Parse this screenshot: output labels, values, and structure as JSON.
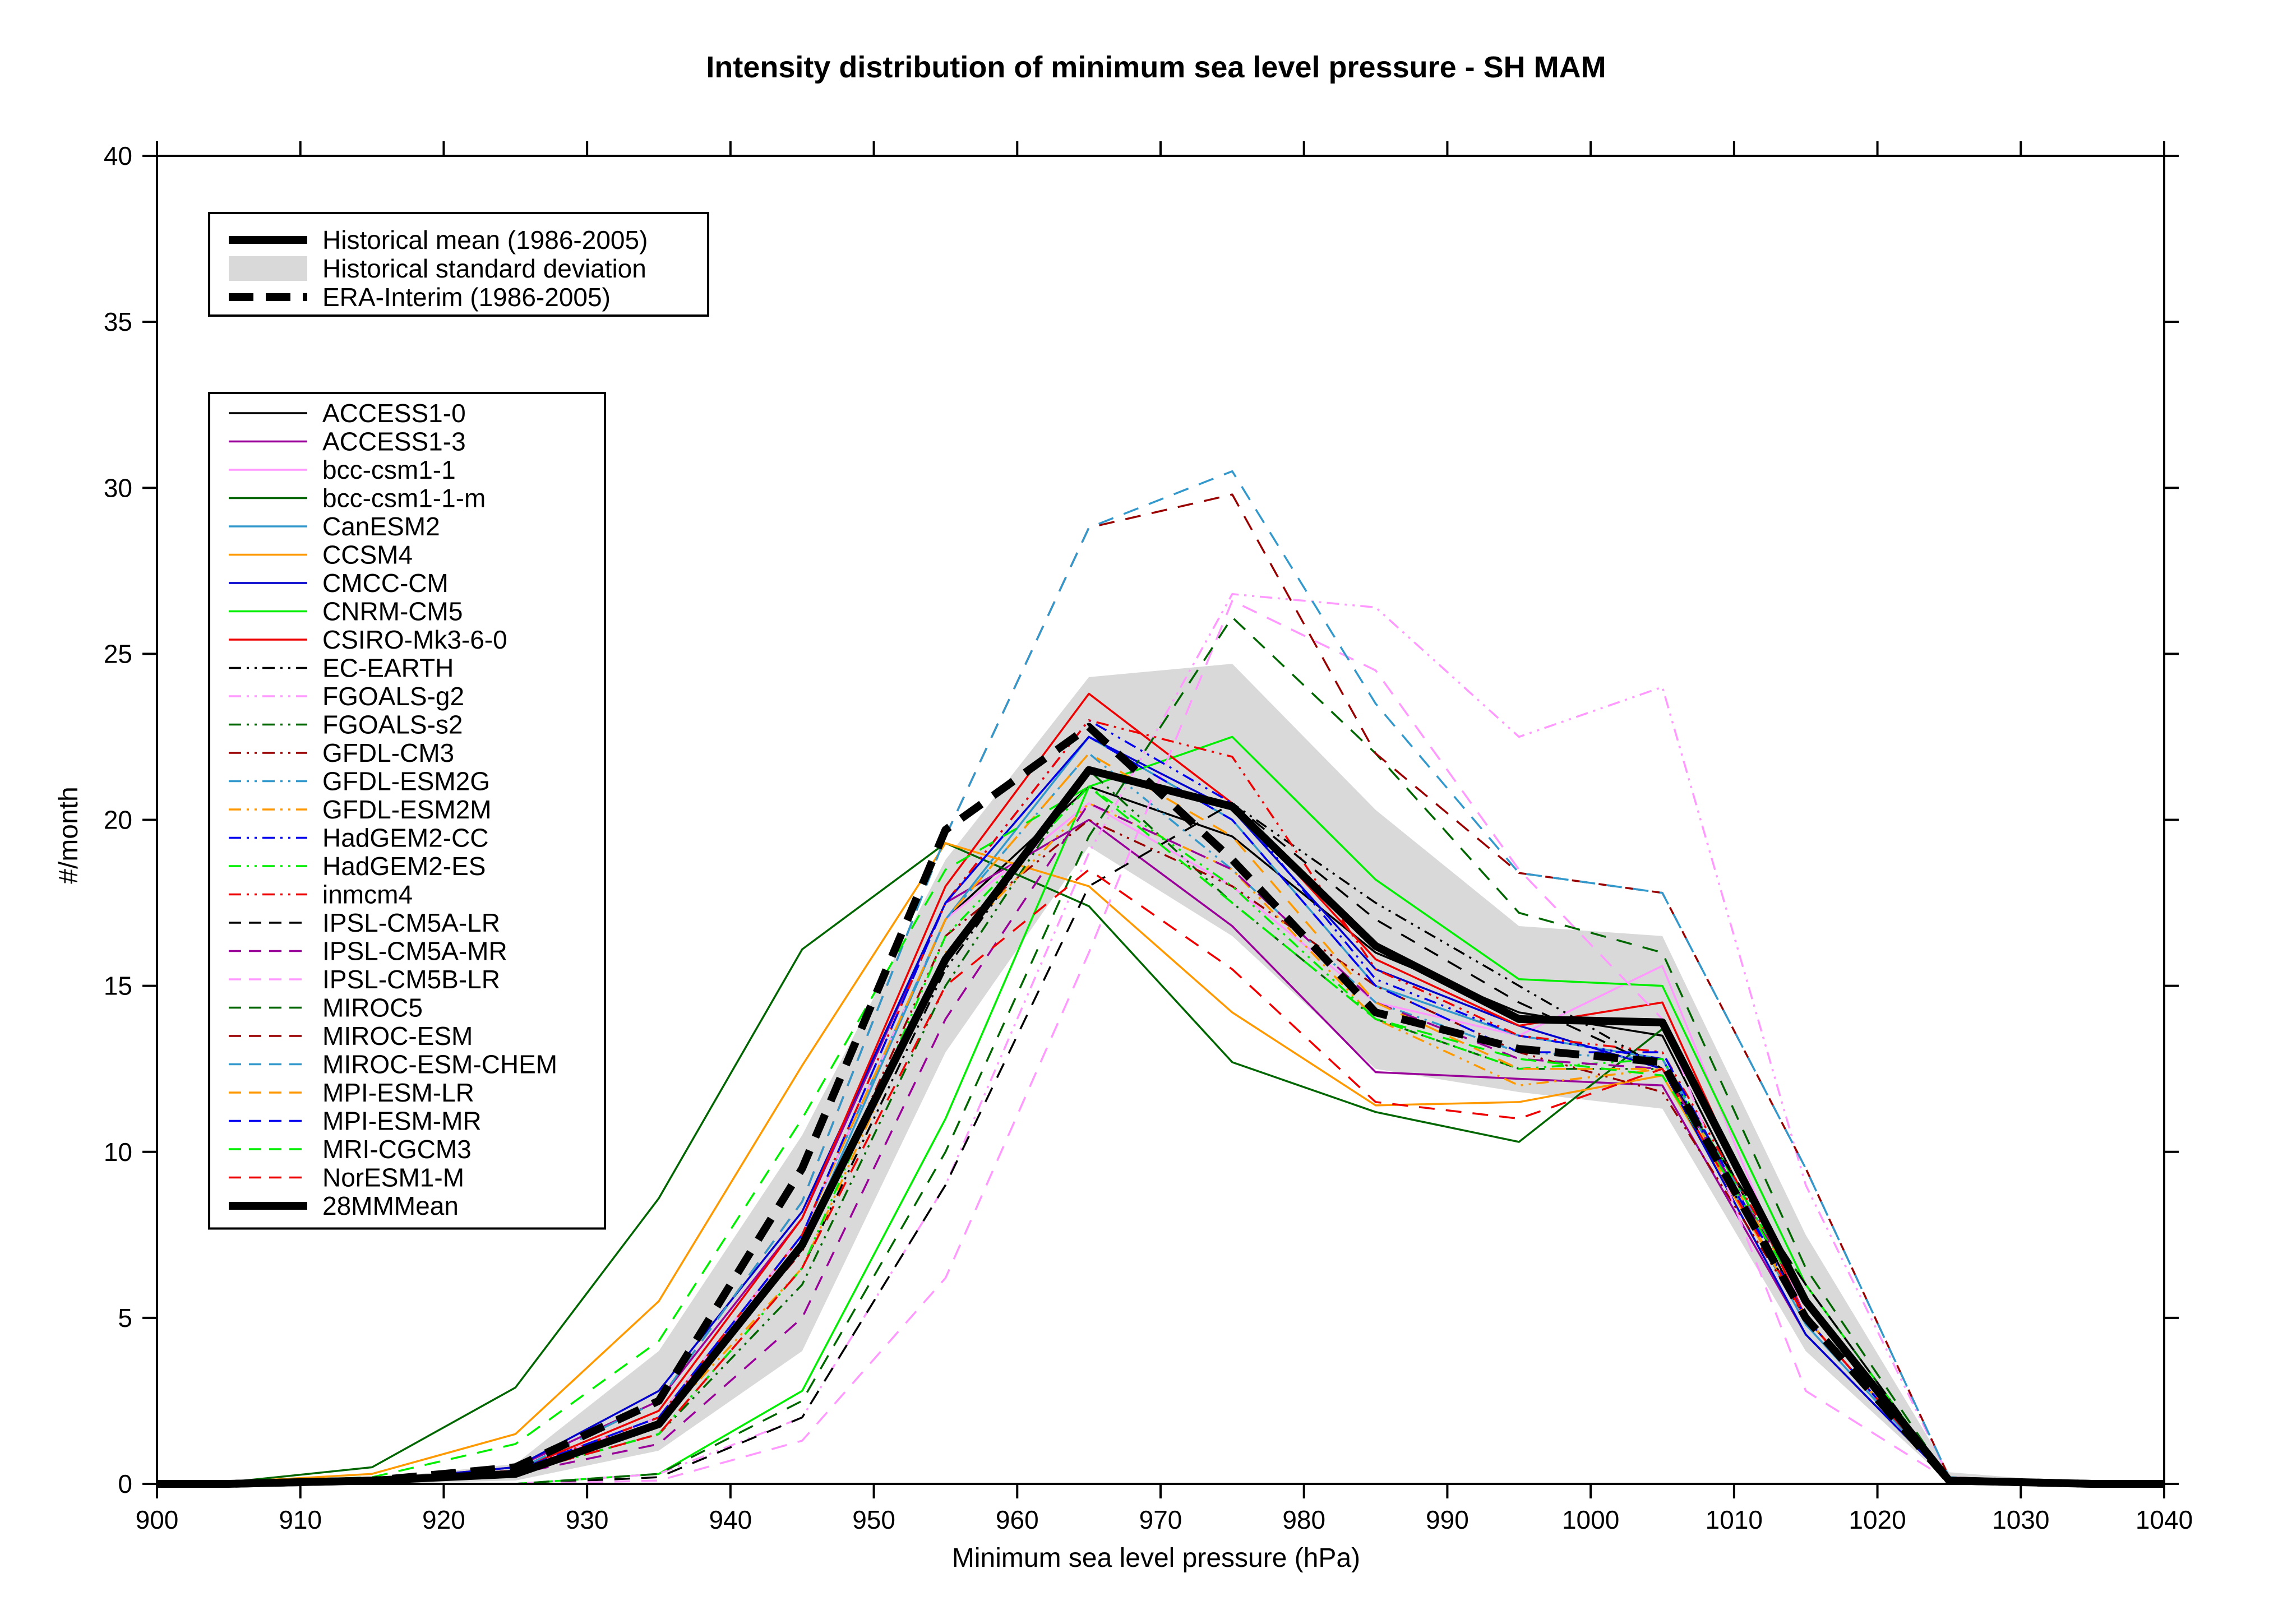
{
  "chart_data": {
    "type": "line",
    "title": "Intensity distribution of minimum sea level pressure - SH MAM",
    "xlabel": "Minimum sea level pressure (hPa)",
    "ylabel": "#/month",
    "xlim": [
      900,
      1040
    ],
    "ylim": [
      0,
      40
    ],
    "xticks": [
      900,
      910,
      920,
      930,
      940,
      950,
      960,
      970,
      980,
      990,
      1000,
      1010,
      1020,
      1030,
      1040
    ],
    "yticks": [
      0,
      5,
      10,
      15,
      20,
      25,
      30,
      35,
      40
    ],
    "x": [
      900,
      905,
      915,
      925,
      935,
      945,
      955,
      965,
      975,
      985,
      995,
      1005,
      1015,
      1025,
      1035,
      1040
    ],
    "grid": false,
    "std_band": {
      "lower": [
        0,
        0,
        0,
        0.1,
        1.0,
        4.0,
        13.0,
        19.2,
        16.5,
        12.5,
        11.8,
        11.3,
        4.0,
        0.05,
        0,
        0
      ],
      "upper": [
        0,
        0,
        0.15,
        0.6,
        4.0,
        10.5,
        18.8,
        24.3,
        24.7,
        20.3,
        16.8,
        16.5,
        7.5,
        0.35,
        0,
        0
      ]
    },
    "reference_legend": [
      {
        "name": "Historical mean (1986-2005)",
        "style": "thick-solid",
        "color": "#000000"
      },
      {
        "name": "Historical standard deviation",
        "style": "band",
        "color": "#d9d9d9"
      },
      {
        "name": "ERA-Interim (1986-2005)",
        "style": "thick-dashed",
        "color": "#000000"
      }
    ],
    "series": [
      {
        "name": "ACCESS1-0",
        "color": "#000000",
        "dash": "solid",
        "values": [
          0,
          0,
          0.1,
          0.4,
          2.0,
          7.5,
          17.0,
          21.0,
          19.5,
          16.0,
          14.2,
          13.5,
          5.0,
          0.1,
          0,
          0
        ]
      },
      {
        "name": "ACCESS1-3",
        "color": "#990099",
        "dash": "solid",
        "values": [
          0,
          0,
          0.1,
          0.5,
          2.5,
          8.0,
          17.5,
          20.0,
          16.8,
          12.4,
          12.2,
          12.0,
          4.5,
          0.1,
          0,
          0
        ]
      },
      {
        "name": "bcc-csm1-1",
        "color": "#ff99ff",
        "dash": "solid",
        "values": [
          0,
          0,
          0.1,
          0.4,
          2.0,
          7.5,
          17.0,
          20.5,
          18.0,
          14.5,
          13.5,
          15.6,
          5.0,
          0.1,
          0,
          0
        ]
      },
      {
        "name": "bcc-csm1-1-m",
        "color": "#006600",
        "dash": "solid",
        "values": [
          0,
          0.05,
          0.5,
          2.9,
          8.6,
          16.1,
          19.3,
          17.4,
          12.7,
          11.2,
          10.3,
          13.7,
          5.5,
          0.1,
          0,
          0
        ]
      },
      {
        "name": "CanESM2",
        "color": "#3399cc",
        "dash": "solid",
        "values": [
          0,
          0,
          0.1,
          0.3,
          1.8,
          7.2,
          17.0,
          22.5,
          20.0,
          15.0,
          13.5,
          12.8,
          4.8,
          0.1,
          0,
          0
        ]
      },
      {
        "name": "CCSM4",
        "color": "#ff9900",
        "dash": "solid",
        "values": [
          0,
          0.05,
          0.3,
          1.5,
          5.5,
          12.6,
          19.3,
          18.0,
          14.2,
          11.4,
          11.5,
          12.3,
          5.0,
          0.1,
          0,
          0
        ]
      },
      {
        "name": "CMCC-CM",
        "color": "#0000cc",
        "dash": "solid",
        "values": [
          0,
          0,
          0.1,
          0.5,
          2.8,
          8.2,
          17.5,
          22.5,
          20.3,
          15.5,
          13.8,
          12.5,
          4.5,
          0.1,
          0,
          0
        ]
      },
      {
        "name": "CNRM-CM5",
        "color": "#00ee00",
        "dash": "solid",
        "values": [
          0,
          0,
          0,
          0,
          0.3,
          2.8,
          11.0,
          21.0,
          22.5,
          18.2,
          15.2,
          15.0,
          6.0,
          0.1,
          0,
          0
        ]
      },
      {
        "name": "CSIRO-Mk3-6-0",
        "color": "#ee0000",
        "dash": "solid",
        "values": [
          0,
          0,
          0.1,
          0.4,
          2.2,
          8.0,
          18.0,
          23.8,
          20.5,
          15.8,
          13.8,
          14.5,
          5.0,
          0.1,
          0,
          0
        ]
      },
      {
        "name": "EC-EARTH",
        "color": "#000000",
        "dash": "dashdotdot",
        "values": [
          0,
          0,
          0.1,
          0.3,
          1.5,
          6.5,
          15.5,
          21.5,
          20.5,
          17.5,
          15.0,
          12.5,
          5.0,
          0.1,
          0,
          0
        ]
      },
      {
        "name": "FGOALS-g2",
        "color": "#ff99ff",
        "dash": "dashdotdot",
        "values": [
          0,
          0,
          0,
          0,
          0.3,
          2.0,
          9.0,
          19.0,
          26.8,
          26.4,
          22.5,
          24.0,
          9.0,
          0.2,
          0,
          0
        ]
      },
      {
        "name": "FGOALS-s2",
        "color": "#006600",
        "dash": "dashdotdot",
        "values": [
          0,
          0,
          0.1,
          0.3,
          1.5,
          6.0,
          15.0,
          21.5,
          17.5,
          14.0,
          12.5,
          12.5,
          6.0,
          0.1,
          0,
          0
        ]
      },
      {
        "name": "GFDL-CM3",
        "color": "#990000",
        "dash": "dashdotdot",
        "values": [
          0,
          0,
          0.1,
          0.4,
          2.0,
          7.0,
          16.5,
          20.0,
          18.0,
          15.0,
          13.0,
          11.8,
          5.0,
          0.1,
          0,
          0
        ]
      },
      {
        "name": "GFDL-ESM2G",
        "color": "#3399cc",
        "dash": "dashdotdot",
        "values": [
          0,
          0,
          0.1,
          0.4,
          2.0,
          7.5,
          17.0,
          22.0,
          18.5,
          14.5,
          13.0,
          12.8,
          5.5,
          0.1,
          0,
          0
        ]
      },
      {
        "name": "GFDL-ESM2M",
        "color": "#ff9900",
        "dash": "dashdotdot",
        "values": [
          0,
          0,
          0.1,
          0.3,
          1.8,
          6.5,
          16.0,
          20.5,
          18.5,
          14.0,
          12.0,
          12.5,
          5.5,
          0.1,
          0,
          0
        ]
      },
      {
        "name": "HadGEM2-CC",
        "color": "#0000ee",
        "dash": "dashdotdot",
        "values": [
          0,
          0,
          0.1,
          0.4,
          2.0,
          7.5,
          17.5,
          23.0,
          20.5,
          15.2,
          13.5,
          12.8,
          5.0,
          0.1,
          0,
          0
        ]
      },
      {
        "name": "HadGEM2-ES",
        "color": "#00ee00",
        "dash": "dashdotdot",
        "values": [
          0,
          0,
          0.1,
          0.3,
          1.5,
          6.5,
          16.5,
          21.0,
          18.0,
          14.0,
          12.5,
          12.8,
          5.5,
          0.1,
          0,
          0
        ]
      },
      {
        "name": "inmcm4",
        "color": "#ee0000",
        "dash": "dashdotdot",
        "values": [
          0,
          0,
          0.1,
          0.4,
          2.0,
          7.5,
          17.5,
          23.0,
          21.9,
          15.5,
          13.5,
          13.0,
          5.5,
          0.1,
          0,
          0
        ]
      },
      {
        "name": "IPSL-CM5A-LR",
        "color": "#000000",
        "dash": "dashed",
        "values": [
          0,
          0,
          0,
          0,
          0.2,
          2.0,
          9.0,
          18.0,
          20.5,
          17.0,
          14.5,
          12.5,
          6.0,
          0.1,
          0,
          0
        ]
      },
      {
        "name": "IPSL-CM5A-MR",
        "color": "#990099",
        "dash": "dashed",
        "values": [
          0,
          0,
          0.1,
          0.3,
          1.2,
          5.0,
          14.0,
          20.5,
          18.5,
          14.5,
          12.8,
          12.5,
          5.5,
          0.1,
          0,
          0
        ]
      },
      {
        "name": "IPSL-CM5B-LR",
        "color": "#ff99ff",
        "dash": "dashed",
        "values": [
          0,
          0,
          0,
          0,
          0.1,
          1.3,
          6.2,
          16.0,
          26.6,
          24.5,
          18.5,
          14.0,
          2.8,
          0.1,
          0,
          0
        ]
      },
      {
        "name": "MIROC5",
        "color": "#006600",
        "dash": "dashed",
        "values": [
          0,
          0,
          0,
          0,
          0.3,
          2.5,
          10.0,
          19.5,
          26.1,
          22.0,
          17.2,
          16.0,
          6.5,
          0.1,
          0,
          0
        ]
      },
      {
        "name": "MIROC-ESM",
        "color": "#990000",
        "dash": "dashed",
        "values": [
          0,
          0,
          0.1,
          0.4,
          2.5,
          8.5,
          19.5,
          28.8,
          29.8,
          22.0,
          18.4,
          17.8,
          9.5,
          0.2,
          0,
          0
        ]
      },
      {
        "name": "MIROC-ESM-CHEM",
        "color": "#3399cc",
        "dash": "dashed",
        "values": [
          0,
          0,
          0.1,
          0.4,
          2.5,
          8.5,
          19.5,
          28.8,
          30.5,
          23.5,
          18.4,
          17.8,
          9.5,
          0.2,
          0,
          0
        ]
      },
      {
        "name": "MPI-ESM-LR",
        "color": "#ff9900",
        "dash": "dashed",
        "values": [
          0,
          0,
          0.1,
          0.4,
          2.0,
          7.5,
          17.0,
          22.0,
          19.5,
          14.5,
          12.5,
          12.5,
          5.0,
          0.1,
          0,
          0
        ]
      },
      {
        "name": "MPI-ESM-MR",
        "color": "#0000ee",
        "dash": "dashed",
        "values": [
          0,
          0,
          0.1,
          0.4,
          2.0,
          7.5,
          17.5,
          22.5,
          20.0,
          15.0,
          13.0,
          13.0,
          5.0,
          0.1,
          0,
          0
        ]
      },
      {
        "name": "MRI-CGCM3",
        "color": "#00ee00",
        "dash": "dashed",
        "values": [
          0,
          0.05,
          0.2,
          1.2,
          4.3,
          11.0,
          18.5,
          21.0,
          17.5,
          14.0,
          12.8,
          12.3,
          5.5,
          0.1,
          0,
          0
        ]
      },
      {
        "name": "NorESM1-M",
        "color": "#ee0000",
        "dash": "dashed",
        "values": [
          0,
          0,
          0.1,
          0.3,
          1.5,
          6.5,
          15.0,
          18.5,
          15.5,
          11.5,
          11.0,
          12.5,
          5.0,
          0.1,
          0,
          0
        ]
      },
      {
        "name": "28MMMean",
        "color": "#000000",
        "dash": "solid",
        "thick": true,
        "values": [
          0,
          0,
          0.1,
          0.3,
          1.8,
          7.2,
          15.8,
          21.5,
          20.4,
          16.2,
          14.0,
          13.9,
          5.5,
          0.1,
          0,
          0
        ]
      }
    ],
    "reference_series": [
      {
        "name": "Historical mean (1986-2005)",
        "color": "#000000",
        "dash": "solid",
        "values": [
          0,
          0,
          0.1,
          0.3,
          1.8,
          7.2,
          15.8,
          21.5,
          20.4,
          16.2,
          14.0,
          13.9,
          5.5,
          0.1,
          0,
          0
        ]
      },
      {
        "name": "ERA-Interim (1986-2005)",
        "color": "#000000",
        "dash": "dashed",
        "values": [
          0,
          0,
          0.1,
          0.5,
          2.5,
          9.5,
          19.7,
          22.8,
          18.8,
          14.2,
          13.1,
          12.7,
          5.0,
          0.1,
          0,
          0
        ]
      }
    ]
  }
}
